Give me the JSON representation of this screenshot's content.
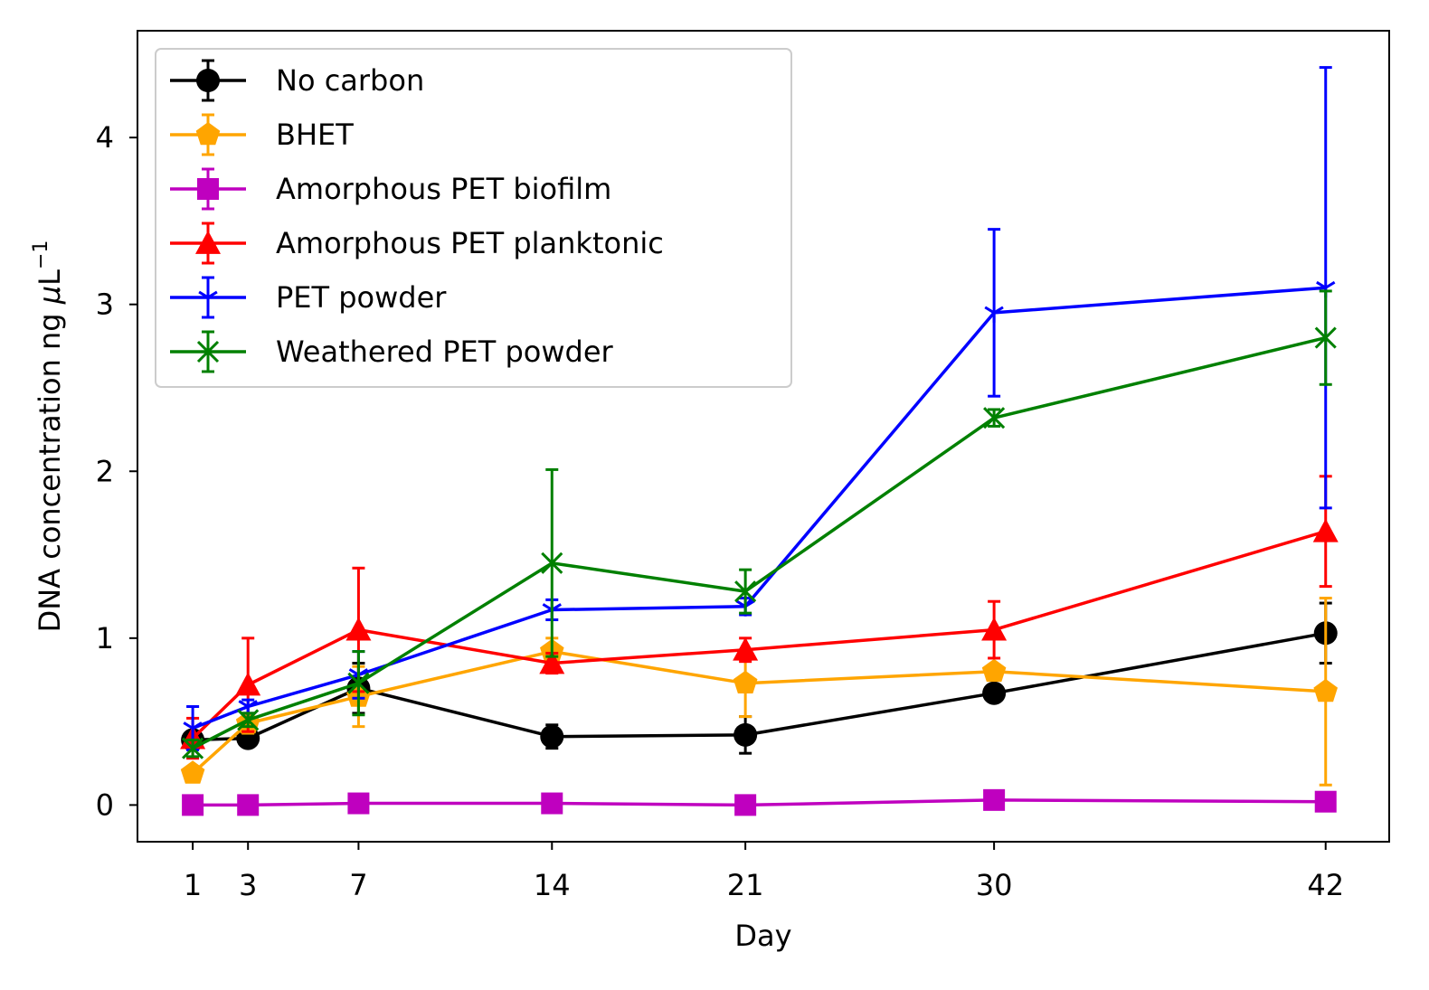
{
  "chart_data": {
    "type": "line",
    "xlabel": "Day",
    "ylabel_main": "DNA concentration ng ",
    "ylabel_mu": "μ",
    "ylabel_unit": "L",
    "ylabel_sup": "−1",
    "x_ticks": [
      "1",
      "3",
      "7",
      "14",
      "21",
      "30",
      "42"
    ],
    "y_ticks": [
      "0",
      "1",
      "2",
      "3",
      "4"
    ],
    "xlim": [
      -1,
      44.3
    ],
    "ylim": [
      -0.22,
      4.64
    ],
    "grid": false,
    "legend_position": "top-left",
    "x": [
      1,
      3,
      7,
      14,
      21,
      30,
      42
    ],
    "series": [
      {
        "name": "No carbon",
        "color": "#000000",
        "marker": "circle",
        "values": [
          0.39,
          0.4,
          0.7,
          0.41,
          0.42,
          0.67,
          1.03
        ],
        "errors": [
          0.04,
          0.04,
          0.15,
          0.07,
          0.11,
          0.04,
          0.18
        ]
      },
      {
        "name": "BHET",
        "color": "#ffa500",
        "marker": "pentagon",
        "values": [
          0.19,
          0.49,
          0.65,
          0.92,
          0.73,
          0.8,
          0.68
        ],
        "errors": [
          0.04,
          0.06,
          0.18,
          0.08,
          0.2,
          0.04,
          0.56
        ]
      },
      {
        "name": "Amorphous PET biofilm",
        "color": "#bf00bf",
        "marker": "square",
        "values": [
          0.0,
          0.0,
          0.01,
          0.01,
          0.0,
          0.03,
          0.02
        ],
        "errors": [
          0.01,
          0.01,
          0.01,
          0.01,
          0.01,
          0.01,
          0.01
        ]
      },
      {
        "name": "Amorphous PET planktonic",
        "color": "#ff0000",
        "marker": "triangle",
        "values": [
          0.4,
          0.72,
          1.05,
          0.85,
          0.93,
          1.05,
          1.64
        ],
        "errors": [
          0.12,
          0.28,
          0.37,
          0.06,
          0.07,
          0.17,
          0.33
        ]
      },
      {
        "name": "PET powder",
        "color": "#0000ff",
        "marker": "tri",
        "values": [
          0.46,
          0.59,
          0.78,
          1.17,
          1.19,
          2.95,
          3.1
        ],
        "errors": [
          0.13,
          0.04,
          0.14,
          0.06,
          0.05,
          0.5,
          1.32
        ]
      },
      {
        "name": "Weathered PET powder",
        "color": "#008000",
        "marker": "x",
        "values": [
          0.34,
          0.51,
          0.73,
          1.45,
          1.28,
          2.32,
          2.8
        ],
        "errors": [
          0.05,
          0.04,
          0.19,
          0.56,
          0.13,
          0.05,
          0.28
        ]
      }
    ]
  }
}
